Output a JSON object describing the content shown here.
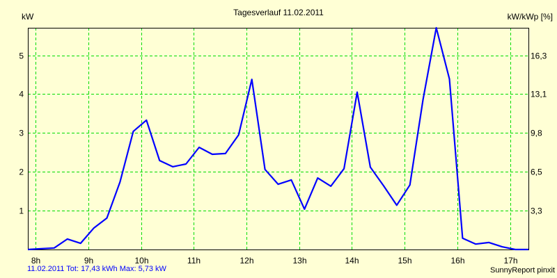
{
  "header": {
    "title": "Tagesverlauf 11.02.2011",
    "y_left_unit": "kW",
    "y_right_unit": "kW/kWp [%]"
  },
  "footer": {
    "summary": "11.02.2011 Tot: 17,43 kWh Max: 5,73 kW",
    "credit": "SunnyReport pinxit"
  },
  "colors": {
    "background": "#ffffd5",
    "grid": "#00dd00",
    "line": "#0000ff",
    "frame": "#000000",
    "summary_text": "#0000ff"
  },
  "chart_data": {
    "type": "line",
    "title": "Tagesverlauf 11.02.2011",
    "xlabel": "",
    "ylabel": "kW",
    "ylabel_right": "kW/kWp [%]",
    "x_ticks": [
      "8h",
      "9h",
      "10h",
      "11h",
      "12h",
      "13h",
      "14h",
      "15h",
      "16h",
      "17h"
    ],
    "y_ticks_left": [
      "1",
      "2",
      "3",
      "4",
      "5"
    ],
    "y_ticks_right": [
      "3,3",
      "6,5",
      "9,8",
      "13,1",
      "16,3"
    ],
    "ylim": [
      0,
      5.73
    ],
    "xlim": [
      "7:51",
      "17:21"
    ],
    "grid": true,
    "x": [
      "7:51",
      "8:06",
      "8:21",
      "8:36",
      "8:51",
      "9:06",
      "9:21",
      "9:36",
      "9:51",
      "10:06",
      "10:21",
      "10:36",
      "10:51",
      "11:06",
      "11:21",
      "11:36",
      "11:51",
      "12:06",
      "12:21",
      "12:36",
      "12:51",
      "13:06",
      "13:21",
      "13:36",
      "13:51",
      "14:06",
      "14:21",
      "14:36",
      "14:51",
      "15:06",
      "15:21",
      "15:36",
      "15:51",
      "16:06",
      "16:21",
      "16:36",
      "16:51",
      "17:06",
      "17:21"
    ],
    "series": [
      {
        "name": "kW",
        "values": [
          0.0,
          0.02,
          0.04,
          0.27,
          0.16,
          0.55,
          0.81,
          1.74,
          3.04,
          3.33,
          2.29,
          2.13,
          2.2,
          2.63,
          2.45,
          2.47,
          2.95,
          4.38,
          2.06,
          1.68,
          1.79,
          1.04,
          1.84,
          1.63,
          2.08,
          4.05,
          2.12,
          1.64,
          1.14,
          1.66,
          3.86,
          5.73,
          4.39,
          0.29,
          0.14,
          0.18,
          0.07,
          0.0,
          0.0
        ]
      }
    ],
    "summary": {
      "total_kwh": 17.43,
      "max_kw": 5.73,
      "date": "11.02.2011"
    }
  }
}
